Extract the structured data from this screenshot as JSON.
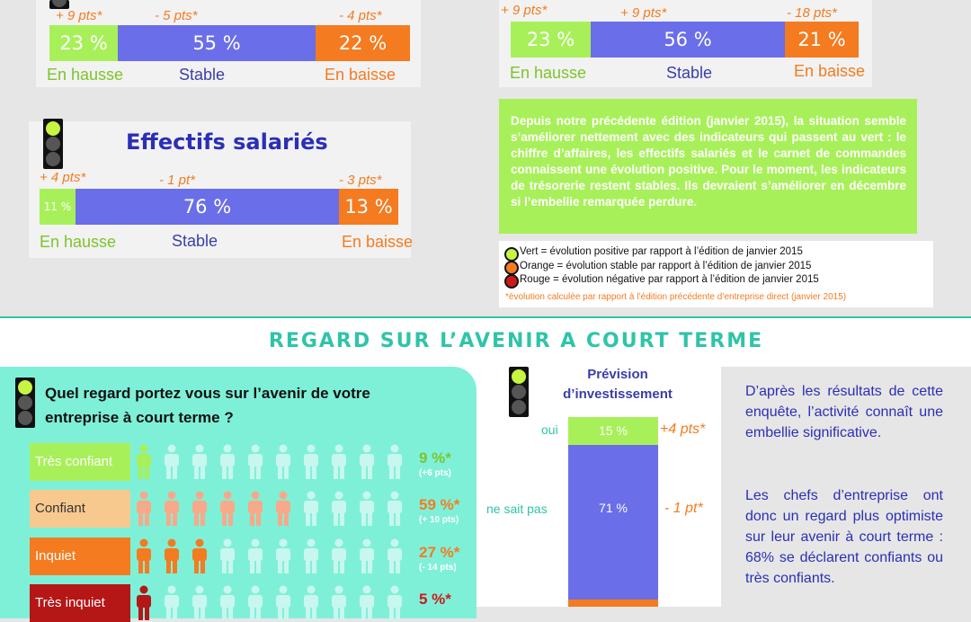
{
  "colors": {
    "up": "#a8f05a",
    "stable": "#6a6ee8",
    "down": "#f47b20",
    "red": "#cc1a1a",
    "up_text": "#7dc42a",
    "stable_text": "#3a3ea8",
    "orange_text": "#f47b20",
    "teal": "#2fc4a8",
    "mint": "#7ff0d8",
    "peach": "#f8c98e",
    "tres_inquiet": "#b51616"
  },
  "chart_data": [
    {
      "type": "bar",
      "title": "",
      "series": [
        {
          "name": "En hausse",
          "values": [
            23
          ]
        },
        {
          "name": "Stable",
          "values": [
            55
          ]
        },
        {
          "name": "En baisse",
          "values": [
            22
          ]
        }
      ],
      "labels": {
        "up": "23 %",
        "stable": "55 %",
        "down": "22 %"
      },
      "deltas": {
        "up": "+ 9 pts*",
        "stable": "- 5 pts*",
        "down": "- 4 pts*"
      }
    },
    {
      "type": "bar",
      "title": "",
      "series": [
        {
          "name": "En hausse",
          "values": [
            23
          ]
        },
        {
          "name": "Stable",
          "values": [
            56
          ]
        },
        {
          "name": "En baisse",
          "values": [
            21
          ]
        }
      ],
      "labels": {
        "up": "23 %",
        "stable": "56 %",
        "down": "21 %"
      },
      "deltas": {
        "up": "+ 9 pts*",
        "stable": "+ 9 pts*",
        "down": "- 18 pts*"
      }
    },
    {
      "type": "bar",
      "title": "Effectifs salariés",
      "series": [
        {
          "name": "En hausse",
          "values": [
            11
          ]
        },
        {
          "name": "Stable",
          "values": [
            76
          ]
        },
        {
          "name": "En baisse",
          "values": [
            13
          ]
        }
      ],
      "labels": {
        "up": "11 %",
        "stable": "76 %",
        "down": "13 %"
      },
      "deltas": {
        "up": "+ 4 pts*",
        "stable": "- 1 pt*",
        "down": "- 3 pts*"
      }
    },
    {
      "type": "bar",
      "title": "Prévision d’investissement",
      "categories": [
        "oui",
        "ne sait pas"
      ],
      "values": [
        15,
        71
      ],
      "labels": [
        "15 %",
        "71 %"
      ],
      "deltas": [
        "+4 pts*",
        "- 1 pt*"
      ]
    },
    {
      "type": "table",
      "title": "Quel regard portez vous sur l’avenir de votre entreprise à court terme ?",
      "rows": [
        {
          "label": "Très confiant",
          "value": 9,
          "value_label": "9 %*",
          "delta": "(+6 pts)",
          "filled": 1
        },
        {
          "label": "Confiant",
          "value": 59,
          "value_label": "59 %*",
          "delta": "(+ 10 pts)",
          "filled": 6
        },
        {
          "label": "Inquiet",
          "value": 27,
          "value_label": "27 %*",
          "delta": "(- 14 pts)",
          "filled": 3
        },
        {
          "label": "Très inquiet",
          "value": 5,
          "value_label": "5 %*",
          "delta": "",
          "filled": 1
        }
      ]
    }
  ],
  "bars": {
    "label_up": "En hausse",
    "label_stable": "Stable",
    "label_down": "En baisse"
  },
  "summary": "Depuis notre précédente édition (janvier 2015), la situation semble s’améliorer nettement avec des indicateurs qui passent au vert : le chiffre d’affaires, les effectifs salariés et le carnet de commandes connaissent une évolution positive. Pour le moment, les indicateurs de trésorerie restent stables. Ils devraient s’améliorer en décembre si l’embellie remarquée perdure.",
  "legend": {
    "green": "Vert = évolution positive par rapport à l’édition de janvier 2015",
    "orange": "Orange = évolution stable par rapport à l’édition de janvier 2015",
    "red": "Rouge = évolution négative par rapport à l’édition de janvier 2015",
    "note": "*évolution calculée par rapport à l’édition précédente d’entreprise direct (janvier 2015)"
  },
  "section_title": "REGARD SUR L’AVENIR A COURT TERME",
  "invest": {
    "title_line1": "Prévision",
    "title_line2": "d’investissement",
    "oui": "oui",
    "nsp": "ne sait pas"
  },
  "conclusion": {
    "p1": "D’après les résultats de cette enquête, l’activité connaît une embellie significative.",
    "p2": "Les chefs d’entreprise ont donc un regard plus optimiste sur leur avenir à court terme : 68% se déclarent confiants ou très confiants."
  }
}
